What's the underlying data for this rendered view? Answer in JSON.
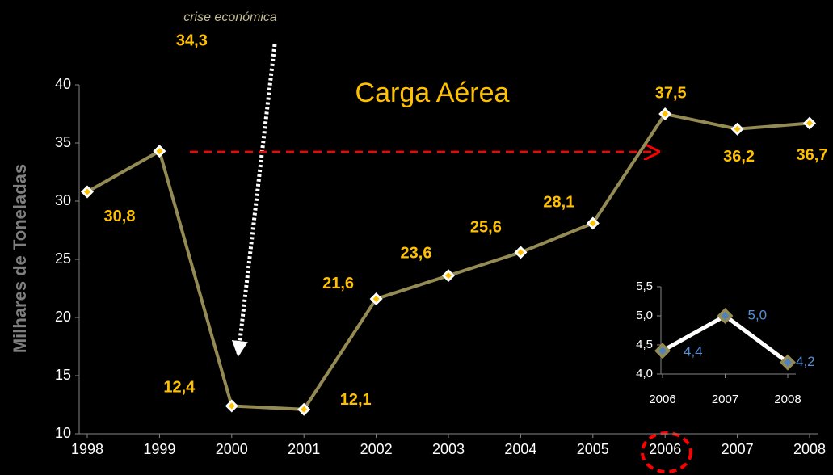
{
  "chart_data": [
    {
      "type": "line",
      "title": "Carga Aérea",
      "y_label": "Milhares de Toneladas",
      "annotation": "crise económica",
      "categories": [
        "1998",
        "1999",
        "2000",
        "2001",
        "2002",
        "2003",
        "2004",
        "2005",
        "2006",
        "2007",
        "2008"
      ],
      "series": [
        {
          "color": "#948a54",
          "values": [
            30.8,
            34.3,
            12.4,
            12.1,
            21.6,
            23.6,
            25.6,
            28.1,
            37.5,
            36.2,
            36.7
          ],
          "value_labels": [
            "30,8",
            "34,3",
            "12,4",
            "12,1",
            "21,6",
            "23,6",
            "25,6",
            "28,1",
            "37,5",
            "36,2",
            "36,7"
          ]
        }
      ],
      "ylim": [
        10,
        40
      ],
      "yticks": [
        10,
        15,
        20,
        25,
        30,
        35,
        40
      ]
    },
    {
      "type": "line",
      "categories": [
        "2006",
        "2007",
        "2008"
      ],
      "series": [
        {
          "color": "#ffffff",
          "values": [
            4.4,
            5.0,
            4.2
          ],
          "value_labels": [
            "4,4",
            "5,0",
            "4,2"
          ]
        }
      ],
      "ylim": [
        4.0,
        5.5
      ],
      "yticks": [
        {
          "value": 4.0,
          "label": "4,0"
        },
        {
          "value": 4.5,
          "label": "4,5"
        },
        {
          "value": 5.0,
          "label": "5,0"
        },
        {
          "value": 5.5,
          "label": "5,5"
        }
      ]
    }
  ]
}
